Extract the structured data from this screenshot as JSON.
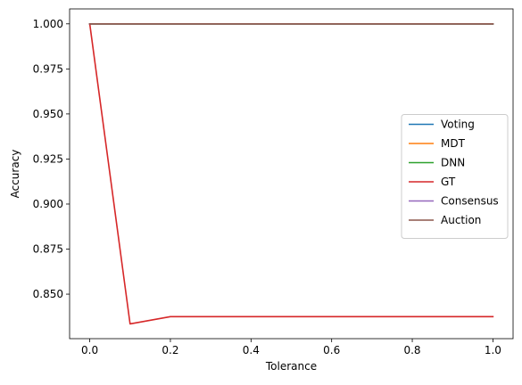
{
  "chart_data": {
    "type": "line",
    "xlabel": "Tolerance",
    "ylabel": "Accuracy",
    "xlim": [
      -0.05,
      1.05
    ],
    "ylim": [
      0.8253,
      1.0083
    ],
    "xticks": [
      0.0,
      0.2,
      0.4,
      0.6,
      0.8,
      1.0
    ],
    "xtick_labels": [
      "0.0",
      "0.2",
      "0.4",
      "0.6",
      "0.8",
      "1.0"
    ],
    "yticks": [
      0.85,
      0.875,
      0.9,
      0.925,
      0.95,
      0.975,
      1.0
    ],
    "ytick_labels": [
      "0.850",
      "0.875",
      "0.900",
      "0.925",
      "0.950",
      "0.975",
      "1.000"
    ],
    "x": [
      0.0,
      0.1,
      0.2,
      0.3,
      0.4,
      0.5,
      0.6,
      0.7,
      0.8,
      0.9,
      1.0
    ],
    "legend_position": "center-right",
    "grid": false,
    "series": [
      {
        "name": "Voting",
        "color": "#1f77b4",
        "values": [
          1.0,
          1.0,
          1.0,
          1.0,
          1.0,
          1.0,
          1.0,
          1.0,
          1.0,
          1.0,
          1.0
        ]
      },
      {
        "name": "MDT",
        "color": "#ff7f0e",
        "values": [
          1.0,
          1.0,
          1.0,
          1.0,
          1.0,
          1.0,
          1.0,
          1.0,
          1.0,
          1.0,
          1.0
        ]
      },
      {
        "name": "DNN",
        "color": "#2ca02c",
        "values": [
          1.0,
          1.0,
          1.0,
          1.0,
          1.0,
          1.0,
          1.0,
          1.0,
          1.0,
          1.0,
          1.0
        ]
      },
      {
        "name": "GT",
        "color": "#d62728",
        "values": [
          1.0,
          0.8335,
          0.8375,
          0.8375,
          0.8375,
          0.8375,
          0.8375,
          0.8375,
          0.8375,
          0.8375,
          0.8375
        ]
      },
      {
        "name": "Consensus",
        "color": "#9467bd",
        "values": [
          1.0,
          1.0,
          1.0,
          1.0,
          1.0,
          1.0,
          1.0,
          1.0,
          1.0,
          1.0,
          1.0
        ]
      },
      {
        "name": "Auction",
        "color": "#8c564b",
        "values": [
          1.0,
          1.0,
          1.0,
          1.0,
          1.0,
          1.0,
          1.0,
          1.0,
          1.0,
          1.0,
          1.0
        ]
      }
    ]
  }
}
